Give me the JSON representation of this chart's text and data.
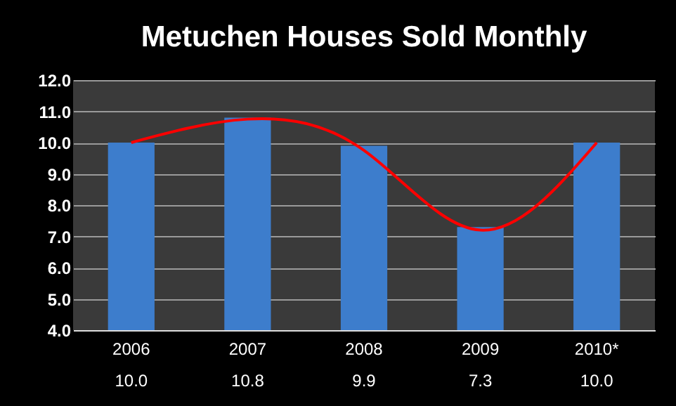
{
  "chart_data": {
    "type": "bar",
    "title": "Metuchen Houses Sold Monthly",
    "categories": [
      "2006",
      "2007",
      "2008",
      "2009",
      "2010*"
    ],
    "series": [
      {
        "color": "#3d7dcc",
        "values": [
          10.0,
          10.8,
          9.9,
          7.3,
          10.0
        ],
        "value_labels": [
          "10.0",
          "10.8",
          "9.9",
          "7.3",
          "10.0"
        ]
      },
      {
        "type": "line",
        "color": "#ff0000",
        "values": [
          10.0,
          10.75,
          9.75,
          7.2,
          10.0
        ]
      }
    ],
    "ylim": [
      4,
      12
    ],
    "yticks": [
      {
        "value": 4,
        "label": "4.0"
      },
      {
        "value": 5,
        "label": "5.0"
      },
      {
        "value": 6,
        "label": "6.0"
      },
      {
        "value": 7,
        "label": "7.0"
      },
      {
        "value": 8,
        "label": "8.0"
      },
      {
        "value": 9,
        "label": "9.0"
      },
      {
        "value": 10,
        "label": "10.0"
      },
      {
        "value": 11,
        "label": "11.0"
      },
      {
        "value": 12,
        "label": "12.0"
      }
    ],
    "grid": "y"
  }
}
